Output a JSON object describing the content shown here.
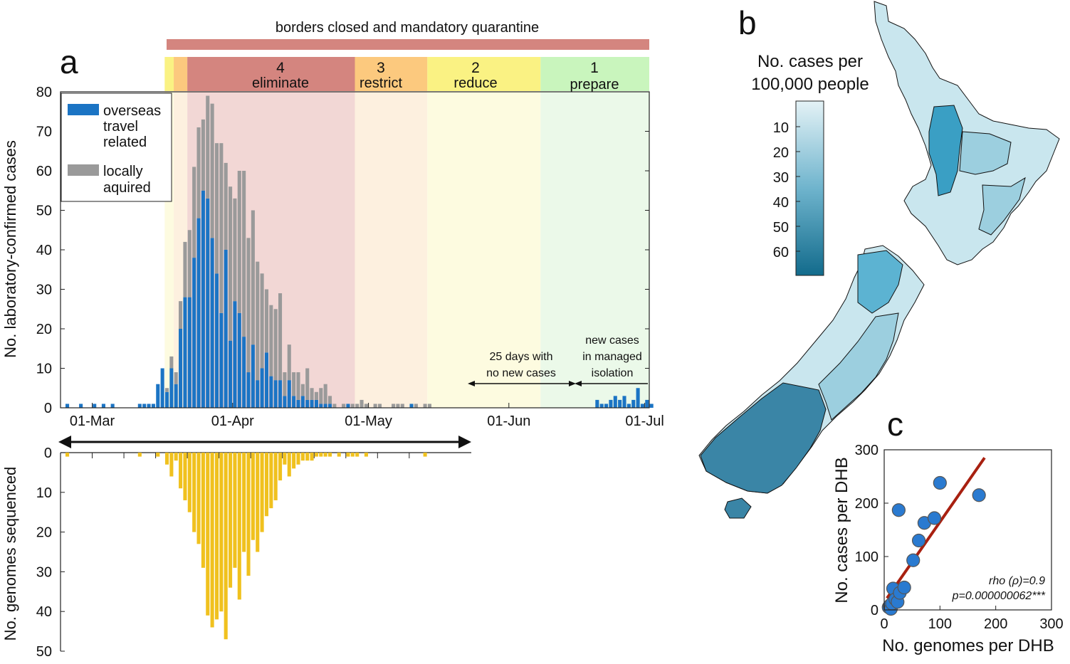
{
  "panel_labels": {
    "a": "a",
    "b": "b",
    "c": "c"
  },
  "top_banner": {
    "label": "borders closed and mandatory quarantine",
    "color": "#d4857f"
  },
  "alert_levels": [
    {
      "number": "4",
      "name": "eliminate",
      "color": "#d4857f",
      "shade": "#f2d7d5"
    },
    {
      "number": "3",
      "name": "restrict",
      "color": "#fcc97e",
      "shade": "#fdf0df"
    },
    {
      "number": "2",
      "name": "reduce",
      "color": "#faf283",
      "shade": "#fdfbe0"
    },
    {
      "number": "1",
      "name": "prepare",
      "color": "#c9f5bd",
      "shade": "#ebf9e9"
    }
  ],
  "pre_levels": [
    {
      "number": "",
      "name": "",
      "color": "#faf283",
      "shade": "#fdfbe0"
    },
    {
      "number": "",
      "name": "",
      "color": "#fcc97e",
      "shade": "#fdf0df"
    }
  ],
  "annotations": {
    "no_new_line1": "25 days with",
    "no_new_line2": "no new cases",
    "managed_line1": "new cases",
    "managed_line2": "in managed",
    "managed_line3": "isolation"
  },
  "colors": {
    "overseas": "#1b74c4",
    "local": "#9a9a9a",
    "genomes": "#f0c11e",
    "fit": "#a82010",
    "scatter": "#2a7ad0"
  },
  "chart_data": [
    {
      "type": "bar",
      "id": "cases",
      "title": "",
      "ylabel": "No. laboratory-confirmed cases",
      "xlabel": "",
      "ylim": [
        0,
        80
      ],
      "yticks": [
        "0",
        "10",
        "20",
        "30",
        "40",
        "50",
        "60",
        "70",
        "80"
      ],
      "xticks": [
        {
          "day": 0,
          "label": "01-Mar"
        },
        {
          "day": 31,
          "label": "01-Apr"
        },
        {
          "day": 61,
          "label": "01-May"
        },
        {
          "day": 92,
          "label": "01-Jun"
        },
        {
          "day": 122,
          "label": "01-Jul"
        }
      ],
      "day_range": [
        -7,
        123
      ],
      "legend": [
        "overseas travel related",
        "locally aquired"
      ],
      "legend_position": "top-left",
      "overseas": [
        [
          -6,
          1
        ],
        [
          -3,
          1
        ],
        [
          0,
          1
        ],
        [
          2,
          1
        ],
        [
          4,
          1
        ],
        [
          10,
          1
        ],
        [
          11,
          1
        ],
        [
          12,
          1
        ],
        [
          13,
          1
        ],
        [
          14,
          6
        ],
        [
          15,
          10
        ],
        [
          16,
          4
        ],
        [
          17,
          10
        ],
        [
          18,
          6
        ],
        [
          19,
          20
        ],
        [
          20,
          28
        ],
        [
          21,
          28
        ],
        [
          22,
          38
        ],
        [
          23,
          48
        ],
        [
          24,
          55
        ],
        [
          25,
          53
        ],
        [
          26,
          43
        ],
        [
          27,
          34
        ],
        [
          28,
          24
        ],
        [
          29,
          40
        ],
        [
          30,
          17
        ],
        [
          31,
          27
        ],
        [
          32,
          24
        ],
        [
          33,
          18
        ],
        [
          34,
          9
        ],
        [
          35,
          16
        ],
        [
          36,
          7
        ],
        [
          37,
          10
        ],
        [
          38,
          14
        ],
        [
          39,
          8
        ],
        [
          40,
          7
        ],
        [
          41,
          7
        ],
        [
          42,
          3
        ],
        [
          43,
          7
        ],
        [
          44,
          3
        ],
        [
          45,
          2
        ],
        [
          46,
          3
        ],
        [
          47,
          2
        ],
        [
          48,
          2
        ],
        [
          49,
          2
        ],
        [
          50,
          1
        ],
        [
          51,
          1
        ],
        [
          52,
          1
        ],
        [
          56,
          1
        ],
        [
          70,
          1
        ],
        [
          111,
          2
        ],
        [
          112,
          1
        ],
        [
          113,
          1
        ],
        [
          114,
          2
        ],
        [
          115,
          3
        ],
        [
          116,
          2
        ],
        [
          117,
          3
        ],
        [
          118,
          1
        ],
        [
          119,
          2
        ],
        [
          120,
          5
        ],
        [
          121,
          1
        ],
        [
          122,
          2
        ],
        [
          123,
          1
        ]
      ],
      "local": [
        [
          4,
          0
        ],
        [
          15,
          0
        ],
        [
          16,
          1
        ],
        [
          17,
          3
        ],
        [
          18,
          3
        ],
        [
          19,
          7
        ],
        [
          20,
          14
        ],
        [
          21,
          17
        ],
        [
          22,
          23
        ],
        [
          23,
          23
        ],
        [
          24,
          18
        ],
        [
          25,
          26
        ],
        [
          26,
          34
        ],
        [
          27,
          33
        ],
        [
          28,
          43
        ],
        [
          29,
          22
        ],
        [
          30,
          39
        ],
        [
          31,
          26
        ],
        [
          32,
          36
        ],
        [
          33,
          42
        ],
        [
          34,
          34
        ],
        [
          35,
          34
        ],
        [
          36,
          30
        ],
        [
          37,
          24
        ],
        [
          38,
          16
        ],
        [
          39,
          18
        ],
        [
          40,
          18
        ],
        [
          41,
          22
        ],
        [
          42,
          6
        ],
        [
          43,
          9
        ],
        [
          44,
          6
        ],
        [
          45,
          7
        ],
        [
          46,
          3
        ],
        [
          47,
          8
        ],
        [
          48,
          3
        ],
        [
          49,
          2
        ],
        [
          50,
          4
        ],
        [
          51,
          5
        ],
        [
          52,
          2
        ],
        [
          53,
          1
        ],
        [
          55,
          1
        ],
        [
          57,
          1
        ],
        [
          58,
          1
        ],
        [
          59,
          2
        ],
        [
          60,
          1
        ],
        [
          62,
          1
        ],
        [
          63,
          1
        ],
        [
          66,
          1
        ],
        [
          67,
          1
        ],
        [
          68,
          1
        ],
        [
          71,
          1
        ],
        [
          73,
          1
        ],
        [
          74,
          1
        ]
      ]
    },
    {
      "type": "bar",
      "id": "genomes",
      "title": "",
      "ylabel": "No. genomes sequenced",
      "xlabel": "",
      "ylim": [
        0,
        50
      ],
      "yticks": [
        "0",
        "10",
        "20",
        "30",
        "40",
        "50"
      ],
      "inverted": true,
      "values": [
        [
          -6,
          1
        ],
        [
          10,
          1
        ],
        [
          14,
          1
        ],
        [
          16,
          3
        ],
        [
          17,
          6
        ],
        [
          18,
          2
        ],
        [
          19,
          9
        ],
        [
          20,
          12
        ],
        [
          21,
          15
        ],
        [
          22,
          20
        ],
        [
          23,
          23
        ],
        [
          24,
          29
        ],
        [
          25,
          41
        ],
        [
          26,
          44
        ],
        [
          27,
          42
        ],
        [
          28,
          40
        ],
        [
          29,
          47
        ],
        [
          30,
          34
        ],
        [
          31,
          29
        ],
        [
          32,
          37
        ],
        [
          33,
          25
        ],
        [
          34,
          31
        ],
        [
          35,
          22
        ],
        [
          36,
          25
        ],
        [
          37,
          20
        ],
        [
          38,
          16
        ],
        [
          39,
          14
        ],
        [
          40,
          12
        ],
        [
          41,
          7
        ],
        [
          42,
          3
        ],
        [
          43,
          6
        ],
        [
          44,
          4
        ],
        [
          45,
          3
        ],
        [
          46,
          2
        ],
        [
          47,
          2
        ],
        [
          48,
          2
        ],
        [
          49,
          1
        ],
        [
          50,
          1
        ],
        [
          51,
          1
        ],
        [
          52,
          1
        ],
        [
          54,
          1
        ],
        [
          56,
          1
        ],
        [
          57,
          1
        ],
        [
          58,
          1
        ],
        [
          60,
          1
        ],
        [
          73,
          1
        ]
      ]
    },
    {
      "type": "heatmap",
      "id": "map-colorbar",
      "title": "No. cases per 100,000 people",
      "colorbar_ticks": [
        "10",
        "20",
        "30",
        "40",
        "50",
        "60"
      ],
      "colorbar_range": [
        0,
        70
      ]
    },
    {
      "type": "scatter",
      "id": "dhb",
      "title": "",
      "xlabel": "No. genomes per DHB",
      "ylabel": "No. cases per DHB",
      "xlim": [
        0,
        300
      ],
      "ylim": [
        0,
        300
      ],
      "xticks": [
        "0",
        "100",
        "200",
        "300"
      ],
      "yticks": [
        "0",
        "100",
        "200",
        "300"
      ],
      "points": [
        [
          8,
          5
        ],
        [
          10,
          8
        ],
        [
          12,
          2
        ],
        [
          14,
          12
        ],
        [
          16,
          40
        ],
        [
          20,
          20
        ],
        [
          24,
          15
        ],
        [
          26,
          187
        ],
        [
          28,
          32
        ],
        [
          36,
          42
        ],
        [
          52,
          93
        ],
        [
          62,
          130
        ],
        [
          72,
          163
        ],
        [
          90,
          172
        ],
        [
          100,
          238
        ],
        [
          170,
          215
        ]
      ],
      "fit": [
        [
          5,
          22
        ],
        [
          180,
          285
        ]
      ],
      "stat_rho": "rho (ρ)=0.9",
      "stat_p": "p=0.000000062***"
    }
  ]
}
